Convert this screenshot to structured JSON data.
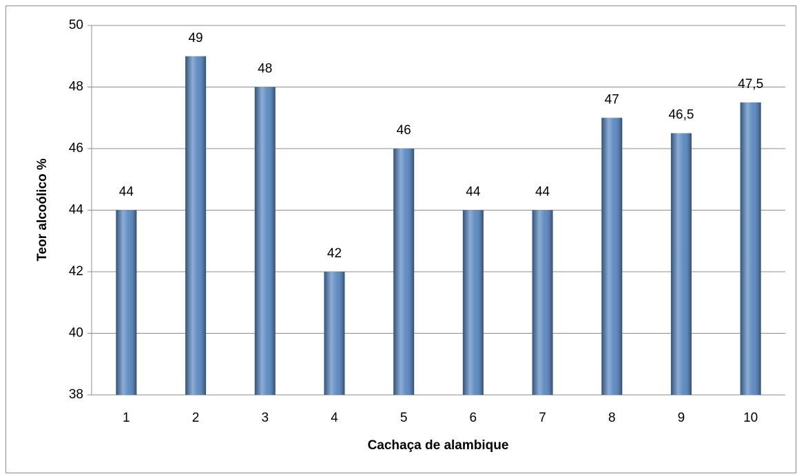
{
  "chart_data": {
    "type": "bar",
    "x_label": "Cachaça de alambique",
    "y_label": "Teor alcoólico %",
    "categories": [
      "1",
      "2",
      "3",
      "4",
      "5",
      "6",
      "7",
      "8",
      "9",
      "10"
    ],
    "values": [
      44,
      49,
      48,
      42,
      46,
      44,
      44,
      47,
      46.5,
      47.5
    ],
    "value_labels": [
      "44",
      "49",
      "48",
      "42",
      "46",
      "44",
      "44",
      "47",
      "46,5",
      "47,5"
    ],
    "color": "#4f81bd",
    "ylim": [
      38,
      50
    ],
    "yticks": [
      38,
      40,
      42,
      44,
      46,
      48,
      50
    ],
    "grid": true
  }
}
